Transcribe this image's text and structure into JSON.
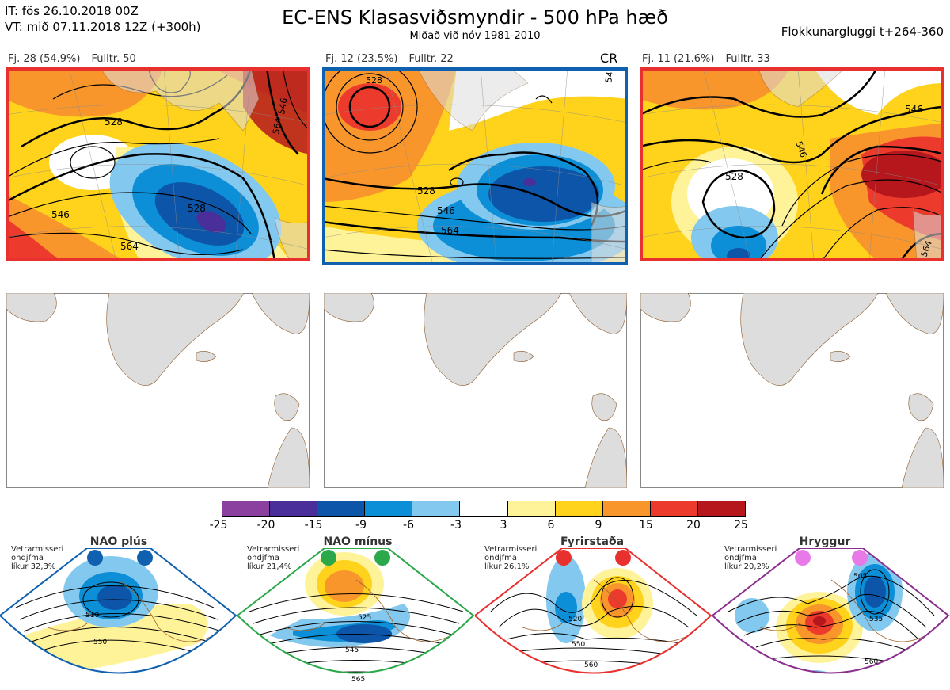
{
  "header": {
    "it": "IT: fös 26.10.2018 00Z",
    "vt": "VT: mið 07.11.2018 12Z  (+300h)",
    "title": "EC-ENS Klasasviðsmyndir - 500 hPa hæð",
    "subtitle": "Miðað við nóv 1981-2010",
    "window": "Flokkunargluggi t+264-360"
  },
  "panels": [
    {
      "label_fj": "Fj. 28 (54.9%)",
      "label_full": "Fulltr. 50",
      "border": "#e8302e",
      "tag": "",
      "contours": [
        "528",
        "546",
        "564",
        "528",
        "546",
        "564"
      ]
    },
    {
      "label_fj": "Fj. 12 (23.5%)",
      "label_full": "Fulltr. 22",
      "border": "#1060b0",
      "tag": "CR",
      "contours": [
        "528",
        "528",
        "546",
        "564",
        "546"
      ]
    },
    {
      "label_fj": "Fj. 11 (21.6%)",
      "label_full": "Fulltr. 33",
      "border": "#e8302e",
      "tag": "",
      "contours": [
        "528",
        "546",
        "546",
        "564"
      ]
    }
  ],
  "colorbar": {
    "ticks": [
      "-25",
      "-20",
      "-15",
      "-9",
      "-6",
      "-3",
      "3",
      "6",
      "9",
      "15",
      "20",
      "25"
    ],
    "colors": [
      "#8b3f9e",
      "#4a2f9a",
      "#0d55a8",
      "#0d8fd8",
      "#83c8ee",
      "#ffffff",
      "#fff39a",
      "#ffd21c",
      "#f8962c",
      "#ec3a2d",
      "#b5171c"
    ]
  },
  "regimes": [
    {
      "name": "NAO plús",
      "note1": "Vetrarmisseri",
      "note2": "ondjfma",
      "note3": "líkur 32,3%",
      "color": "#1060b0",
      "dot": "#1060b0",
      "contours": [
        "510",
        "550"
      ]
    },
    {
      "name": "NAO mínus",
      "note1": "Vetrarmisseri",
      "note2": "ondjfma",
      "note3": "líkur 21,4%",
      "color": "#2aa84a",
      "dot": "#2aa84a",
      "contours": [
        "525",
        "545",
        "565"
      ]
    },
    {
      "name": "Fyrirstaða",
      "note1": "Vetrarmisseri",
      "note2": "ondjfma",
      "note3": "líkur 26,1%",
      "color": "#e8302e",
      "dot": "#e8302e",
      "contours": [
        "520",
        "550",
        "560"
      ]
    },
    {
      "name": "Hryggur",
      "note1": "Vetrarmisseri",
      "note2": "ondjfma",
      "note3": "líkur 20,2%",
      "color": "#8b2f8e",
      "dot": "#e87ae8",
      "contours": [
        "505",
        "535",
        "560"
      ]
    }
  ]
}
